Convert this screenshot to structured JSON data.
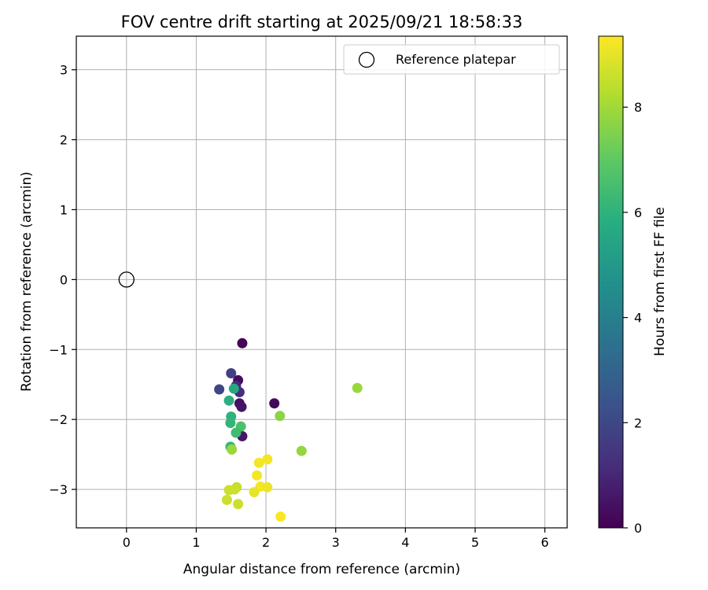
{
  "chart_data": {
    "type": "scatter",
    "title": "FOV centre drift starting at 2025/09/21 18:58:33",
    "xlabel": "Angular distance from reference (arcmin)",
    "ylabel": "Rotation from reference (arcmin)",
    "xlim": [
      -0.72,
      6.32
    ],
    "ylim": [
      -3.55,
      3.48
    ],
    "xticks": [
      0,
      1,
      2,
      3,
      4,
      5,
      6
    ],
    "yticks": [
      -3,
      -2,
      -1,
      0,
      1,
      2,
      3
    ],
    "grid": true,
    "legend": {
      "location": "top-right",
      "entries": [
        {
          "label": "Reference platepar",
          "marker": "open-circle"
        }
      ]
    },
    "reference_point": {
      "x": 0,
      "y": 0
    },
    "colorbar": {
      "label": "Hours from first FF file",
      "colormap": "viridis",
      "range": [
        0,
        9.35
      ],
      "ticks": [
        0,
        2,
        4,
        6,
        8
      ]
    },
    "points": [
      {
        "x": 1.66,
        "y": -0.91,
        "hours": 0.1
      },
      {
        "x": 1.6,
        "y": -1.44,
        "hours": 0.3
      },
      {
        "x": 2.12,
        "y": -1.77,
        "hours": 0.2
      },
      {
        "x": 1.62,
        "y": -1.77,
        "hours": 0.4
      },
      {
        "x": 1.65,
        "y": -1.82,
        "hours": 0.5
      },
      {
        "x": 1.66,
        "y": -2.24,
        "hours": 0.6
      },
      {
        "x": 1.62,
        "y": -1.61,
        "hours": 1.2
      },
      {
        "x": 1.57,
        "y": -1.52,
        "hours": 1.1
      },
      {
        "x": 1.5,
        "y": -1.34,
        "hours": 1.8
      },
      {
        "x": 1.33,
        "y": -1.57,
        "hours": 2.0
      },
      {
        "x": 1.54,
        "y": -1.56,
        "hours": 5.6
      },
      {
        "x": 1.47,
        "y": -1.73,
        "hours": 5.9
      },
      {
        "x": 1.5,
        "y": -1.96,
        "hours": 6.0
      },
      {
        "x": 1.49,
        "y": -2.05,
        "hours": 6.1
      },
      {
        "x": 1.64,
        "y": -2.1,
        "hours": 6.6
      },
      {
        "x": 1.57,
        "y": -2.19,
        "hours": 6.4
      },
      {
        "x": 1.49,
        "y": -2.39,
        "hours": 6.2
      },
      {
        "x": 1.51,
        "y": -2.43,
        "hours": 7.9
      },
      {
        "x": 2.2,
        "y": -1.95,
        "hours": 7.7
      },
      {
        "x": 2.51,
        "y": -2.45,
        "hours": 7.8
      },
      {
        "x": 3.31,
        "y": -1.55,
        "hours": 7.9
      },
      {
        "x": 1.9,
        "y": -2.62,
        "hours": 9.2
      },
      {
        "x": 2.02,
        "y": -2.57,
        "hours": 9.2
      },
      {
        "x": 1.87,
        "y": -2.8,
        "hours": 9.2
      },
      {
        "x": 1.92,
        "y": -2.96,
        "hours": 9.2
      },
      {
        "x": 2.02,
        "y": -2.97,
        "hours": 9.1
      },
      {
        "x": 1.83,
        "y": -3.04,
        "hours": 9.0
      },
      {
        "x": 1.58,
        "y": -2.97,
        "hours": 8.5
      },
      {
        "x": 1.47,
        "y": -3.01,
        "hours": 8.6
      },
      {
        "x": 1.55,
        "y": -3.0,
        "hours": 8.6
      },
      {
        "x": 1.44,
        "y": -3.15,
        "hours": 8.6
      },
      {
        "x": 1.6,
        "y": -3.21,
        "hours": 8.6
      },
      {
        "x": 2.21,
        "y": -3.39,
        "hours": 9.3
      }
    ]
  }
}
